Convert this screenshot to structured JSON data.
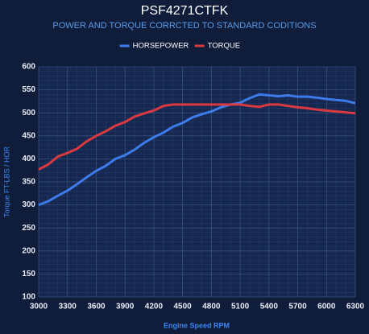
{
  "chart_data": {
    "type": "line",
    "title": "PSF4271CTFK",
    "subtitle": "POWER AND TORQUE CORRCTED TO STANDARD CODITIONS",
    "x_label": "Engine Speed RPM",
    "y_label": "Torque FT-LBS / HOR",
    "x": [
      3000,
      3100,
      3200,
      3300,
      3400,
      3500,
      3600,
      3700,
      3800,
      3900,
      4000,
      4100,
      4200,
      4300,
      4400,
      4500,
      4600,
      4700,
      4800,
      4900,
      5000,
      5100,
      5200,
      5300,
      5400,
      5500,
      5600,
      5700,
      5800,
      5900,
      6000,
      6100,
      6200,
      6300
    ],
    "series": [
      {
        "name": "HORSEPOWER",
        "color": "#3d7bea",
        "values": [
          300,
          308,
          320,
          331,
          345,
          360,
          374,
          385,
          400,
          408,
          420,
          435,
          447,
          457,
          470,
          478,
          490,
          497,
          503,
          512,
          518,
          522,
          532,
          540,
          538,
          536,
          538,
          535,
          535,
          533,
          530,
          528,
          526,
          521
        ]
      },
      {
        "name": "TORQUE",
        "color": "#d9393f",
        "values": [
          377,
          388,
          405,
          413,
          422,
          438,
          450,
          460,
          472,
          480,
          492,
          499,
          505,
          515,
          518,
          518,
          518,
          518,
          518,
          518,
          518,
          518,
          515,
          513,
          518,
          518,
          515,
          512,
          510,
          507,
          505,
          503,
          501,
          499
        ]
      }
    ],
    "xlim": [
      3000,
      6300
    ],
    "xticks": [
      3000,
      3300,
      3600,
      3900,
      4200,
      4500,
      4800,
      5100,
      5400,
      5700,
      6000,
      6300
    ],
    "ylim": [
      100,
      600
    ],
    "yticks": [
      100,
      150,
      200,
      250,
      300,
      350,
      400,
      450,
      500,
      550,
      600
    ],
    "grid": true,
    "legend": "top"
  }
}
